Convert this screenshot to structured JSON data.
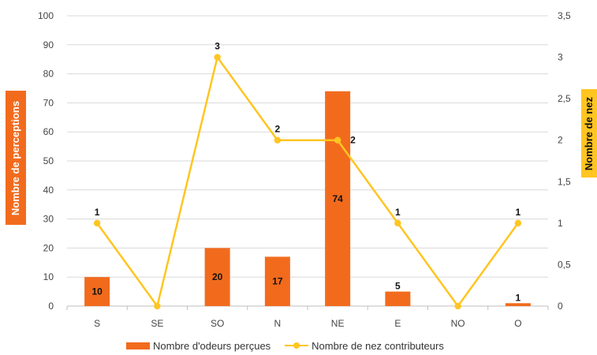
{
  "chart_data": {
    "type": "bar",
    "categories": [
      "S",
      "SE",
      "SO",
      "N",
      "NE",
      "E",
      "NO",
      "O"
    ],
    "series": [
      {
        "name": "Nombre d'odeurs perçues",
        "type": "bar",
        "axis": "left",
        "values": [
          10,
          0,
          20,
          17,
          74,
          5,
          0,
          1
        ],
        "labels": [
          "10",
          "",
          "20",
          "17",
          "74",
          "5",
          "",
          "1"
        ]
      },
      {
        "name": "Nombre de nez contributeurs",
        "type": "line",
        "axis": "right",
        "values": [
          1,
          0,
          3,
          2,
          2,
          1,
          0,
          1
        ],
        "labels": [
          "1",
          "",
          "3",
          "2",
          "2",
          "1",
          "",
          "1"
        ]
      }
    ],
    "ylabel": "Nombre de perceptions",
    "y2label": "Nombre de nez",
    "ylim": [
      0,
      100
    ],
    "y2lim": [
      0,
      3.5
    ],
    "yticks": [
      "0",
      "10",
      "20",
      "30",
      "40",
      "50",
      "60",
      "70",
      "80",
      "90",
      "100"
    ],
    "y2ticks": [
      "0",
      "0,5",
      "1",
      "1,5",
      "2",
      "2,5",
      "3",
      "3,5"
    ],
    "grid": true,
    "legend_position": "bottom"
  },
  "colors": {
    "bar": "#F26B1D",
    "line": "#FFC520",
    "ylabel_bg": "#F26B1D",
    "ylabel_fg": "#ffffff",
    "y2label_bg": "#FFC520",
    "y2label_fg": "#111111",
    "grid": "#D9D9D9",
    "axis": "#BFBFBF"
  }
}
